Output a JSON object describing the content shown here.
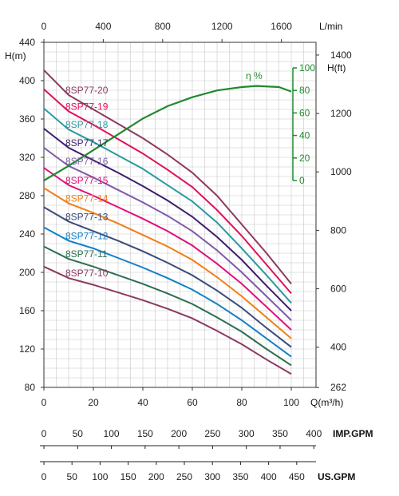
{
  "chart_data": {
    "type": "line",
    "x_axis": {
      "label": "Q(m³/h)",
      "ticks": [
        0,
        20,
        40,
        60,
        80,
        100
      ],
      "range": [
        0,
        110
      ]
    },
    "x_axis_top": {
      "label": "L/min",
      "ticks": [
        0,
        400,
        800,
        1200,
        1600
      ]
    },
    "y_axis_left": {
      "label": "H(m)",
      "ticks": [
        80,
        120,
        160,
        200,
        240,
        280,
        320,
        360,
        400,
        440
      ],
      "range": [
        80,
        440
      ]
    },
    "y_axis_right": {
      "label": "H(ft)",
      "ticks": [
        262,
        400,
        600,
        800,
        1000,
        1200,
        1400
      ]
    },
    "efficiency_axis": {
      "label": "η %",
      "ticks": [
        0,
        20,
        40,
        60,
        80,
        100
      ],
      "range": [
        0,
        100
      ],
      "color": "#1f8a2e"
    },
    "efficiency": {
      "x": [
        0,
        10,
        20,
        30,
        40,
        50,
        60,
        70,
        80,
        86,
        95,
        100
      ],
      "values": [
        0,
        13,
        27,
        41,
        55,
        66,
        74,
        80,
        83,
        84,
        83,
        79
      ]
    },
    "imp_gpm_scale": {
      "label": "IMP.GPM",
      "ticks": [
        0,
        50,
        100,
        150,
        200,
        250,
        300,
        350,
        400
      ]
    },
    "us_gpm_scale": {
      "label": "US.GPM",
      "ticks": [
        0,
        50,
        100,
        150,
        200,
        250,
        300,
        350,
        400,
        450
      ]
    },
    "x": [
      0,
      10,
      20,
      30,
      40,
      50,
      60,
      70,
      80,
      90,
      100
    ],
    "series": [
      {
        "name": "8SP77-20",
        "color": "#8b3a62",
        "values": [
          411,
          385,
          370,
          355,
          340,
          323,
          304,
          280,
          250,
          220,
          188
        ]
      },
      {
        "name": "8SP77-19",
        "color": "#e0105a",
        "values": [
          391,
          368,
          354,
          339,
          324,
          307,
          289,
          265,
          238,
          208,
          178
        ]
      },
      {
        "name": "8SP77-18",
        "color": "#2a9aa0",
        "values": [
          371,
          349,
          336,
          322,
          308,
          291,
          274,
          252,
          225,
          197,
          168
        ]
      },
      {
        "name": "8SP77-17",
        "color": "#3d1f6e",
        "values": [
          350,
          330,
          317,
          304,
          290,
          275,
          258,
          237,
          213,
          186,
          160
        ]
      },
      {
        "name": "8SP77-16",
        "color": "#7e5aa8",
        "values": [
          330,
          311,
          299,
          286,
          273,
          259,
          243,
          223,
          200,
          175,
          150
        ]
      },
      {
        "name": "8SP77-15",
        "color": "#e0107a",
        "values": [
          309,
          291,
          280,
          268,
          256,
          243,
          228,
          209,
          188,
          164,
          140
        ]
      },
      {
        "name": "8SP77-14",
        "color": "#f07f14",
        "values": [
          288,
          272,
          262,
          251,
          239,
          227,
          213,
          195,
          175,
          153,
          131
        ]
      },
      {
        "name": "8SP77-13",
        "color": "#3a4a7a",
        "values": [
          268,
          253,
          243,
          233,
          222,
          210,
          197,
          181,
          163,
          142,
          122
        ]
      },
      {
        "name": "8SP77-12",
        "color": "#1380c9",
        "values": [
          247,
          233,
          225,
          215,
          205,
          194,
          182,
          167,
          150,
          131,
          112
        ]
      },
      {
        "name": "8SP77-11",
        "color": "#2e6e50",
        "values": [
          227,
          214,
          206,
          197,
          188,
          178,
          167,
          153,
          138,
          120,
          103
        ]
      },
      {
        "name": "8SP77-10",
        "color": "#8b3a62",
        "values": [
          206,
          194,
          187,
          179,
          171,
          162,
          152,
          139,
          125,
          109,
          94
        ]
      }
    ],
    "grid": true
  }
}
